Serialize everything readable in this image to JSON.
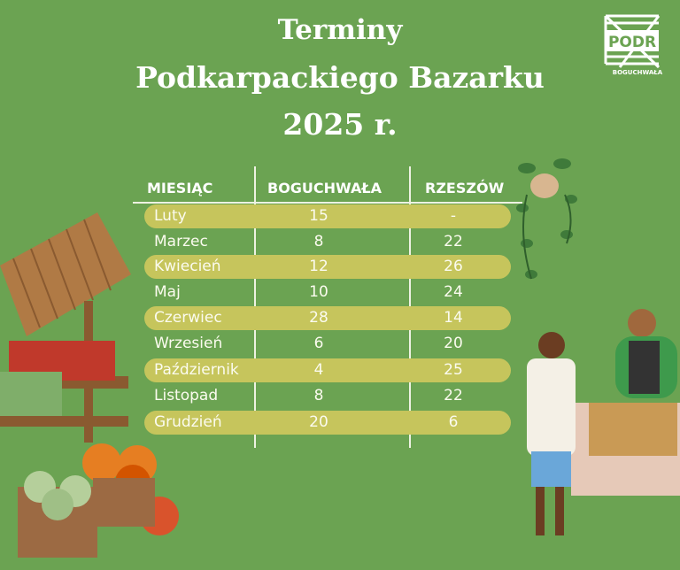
{
  "title": {
    "line1": "Terminy",
    "line2": "Podkarpackiego Bazarku",
    "line3": "2025 r."
  },
  "logo": {
    "text": "PODR",
    "subtext": "BOGUCHWAŁA"
  },
  "table": {
    "headers": [
      "MIESIĄC",
      "BOGUCHWAŁA",
      "RZESZÓW"
    ],
    "rows": [
      [
        "Luty",
        "15",
        "-"
      ],
      [
        "Marzec",
        "8",
        "22"
      ],
      [
        "Kwiecień",
        "12",
        "26"
      ],
      [
        "Maj",
        "10",
        "24"
      ],
      [
        "Czerwiec",
        "28",
        "14"
      ],
      [
        "Wrzesień",
        "6",
        "20"
      ],
      [
        "Październik",
        "4",
        "25"
      ],
      [
        "Listopad",
        "8",
        "22"
      ],
      [
        "Grudzień",
        "20",
        "6"
      ]
    ]
  },
  "colors": {
    "background": "#6ba352",
    "row_highlight": "#c6c55c",
    "text": "#ffffff"
  }
}
